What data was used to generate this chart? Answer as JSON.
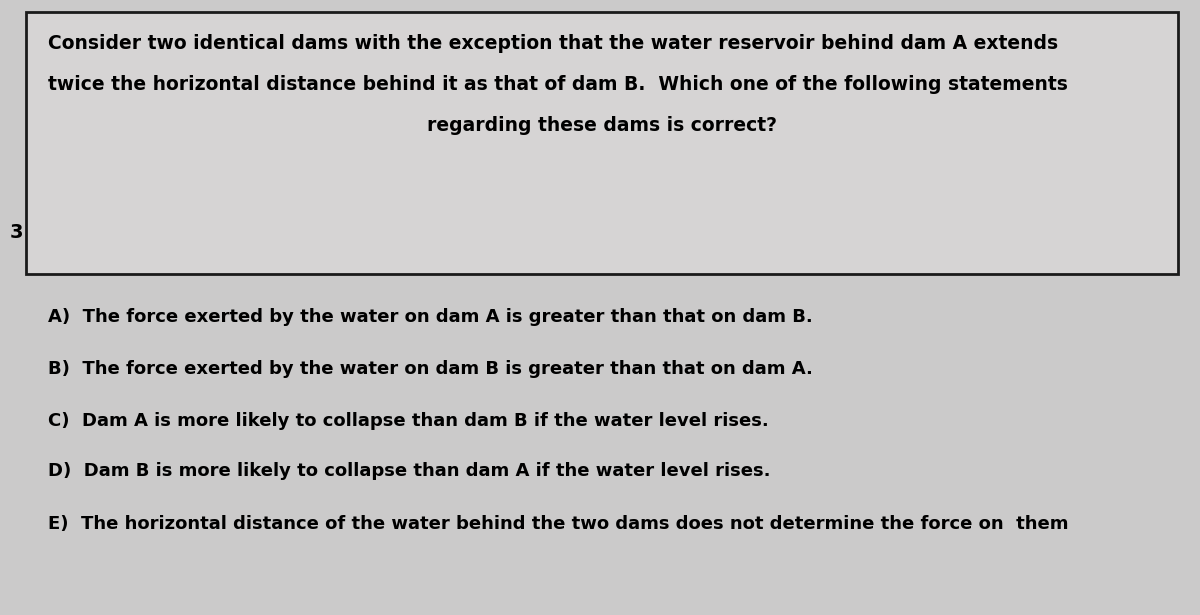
{
  "background_color": "#cbcaca",
  "box_bg_color": "#d6d4d4",
  "box_edge_color": "#1a1a1a",
  "question_number": "3",
  "question_lines": [
    "Consider two identical dams with the exception that the water reservoir behind dam A extends",
    "twice the horizontal distance behind it as that of dam B.  Which one of the following statements",
    "regarding these dams is correct?"
  ],
  "choices": [
    "A)  The force exerted by the water on dam A is greater than that on dam B.",
    "B)  The force exerted by the water on dam B is greater than that on dam A.",
    "C)  Dam A is more likely to collapse than dam B if the water level rises.",
    "D)  Dam B is more likely to collapse than dam A if the water level rises.",
    "E)  The horizontal distance of the water behind the two dams does not determine the force on  them"
  ],
  "question_fontsize": 13.5,
  "choice_fontsize": 13.0,
  "number_fontsize": 14
}
